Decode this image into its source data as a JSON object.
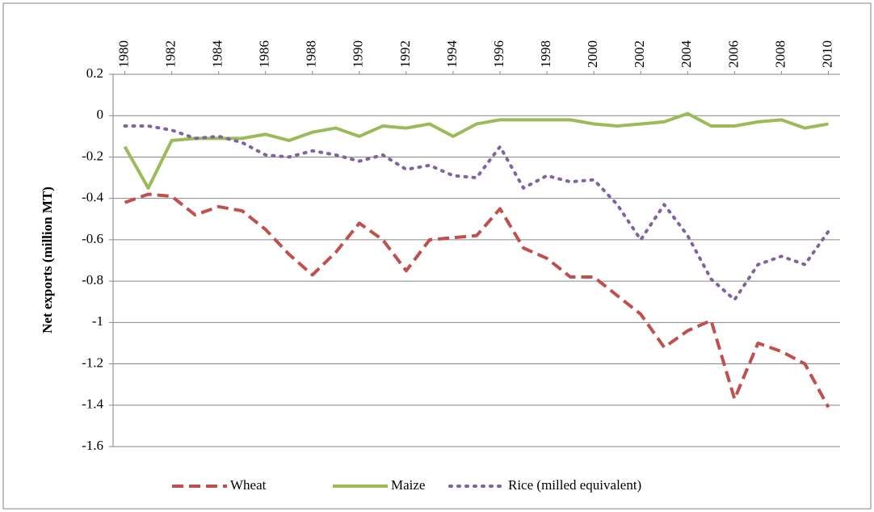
{
  "chart_data": {
    "type": "line",
    "y_label": "Net exports (million MT)",
    "x": [
      1980,
      1981,
      1982,
      1983,
      1984,
      1985,
      1986,
      1987,
      1988,
      1989,
      1990,
      1991,
      1992,
      1993,
      1994,
      1995,
      1996,
      1997,
      1998,
      1999,
      2000,
      2001,
      2002,
      2003,
      2004,
      2005,
      2006,
      2007,
      2008,
      2009,
      2010
    ],
    "xlim": [
      1979.5,
      2010.5
    ],
    "xticks": [
      1980,
      1982,
      1984,
      1986,
      1988,
      1990,
      1992,
      1994,
      1996,
      1998,
      2000,
      2002,
      2004,
      2006,
      2008,
      2010
    ],
    "ylim": [
      -1.6,
      0.2
    ],
    "yticks": [
      0.2,
      0,
      -0.2,
      -0.4,
      -0.6,
      -0.8,
      -1,
      -1.2,
      -1.4,
      -1.6
    ],
    "grid": true,
    "legend": "bottom",
    "series": [
      {
        "name": "Wheat",
        "color": "#c0504d",
        "dash": "dashed",
        "values": [
          -0.42,
          -0.38,
          -0.39,
          -0.48,
          -0.44,
          -0.46,
          -0.55,
          -0.67,
          -0.77,
          -0.66,
          -0.52,
          -0.6,
          -0.75,
          -0.6,
          -0.59,
          -0.58,
          -0.45,
          -0.64,
          -0.69,
          -0.78,
          -0.78,
          -0.87,
          -0.96,
          -1.12,
          -1.04,
          -0.99,
          -1.37,
          -1.1,
          -1.14,
          -1.2,
          -1.41
        ]
      },
      {
        "name": "Maize",
        "color": "#9bbb59",
        "dash": "solid",
        "values": [
          -0.15,
          -0.35,
          -0.12,
          -0.11,
          -0.11,
          -0.11,
          -0.09,
          -0.12,
          -0.08,
          -0.06,
          -0.1,
          -0.05,
          -0.06,
          -0.04,
          -0.1,
          -0.04,
          -0.02,
          -0.02,
          -0.02,
          -0.02,
          -0.04,
          -0.05,
          -0.04,
          -0.03,
          0.01,
          -0.05,
          -0.05,
          -0.03,
          -0.02,
          -0.06,
          -0.04
        ]
      },
      {
        "name": "Rice (milled equivalent)",
        "color": "#8064a2",
        "dash": "dotted",
        "values": [
          -0.05,
          -0.05,
          -0.07,
          -0.11,
          -0.1,
          -0.13,
          -0.19,
          -0.2,
          -0.17,
          -0.19,
          -0.22,
          -0.19,
          -0.26,
          -0.24,
          -0.29,
          -0.3,
          -0.15,
          -0.35,
          -0.29,
          -0.32,
          -0.31,
          -0.43,
          -0.6,
          -0.43,
          -0.58,
          -0.79,
          -0.89,
          -0.72,
          -0.68,
          -0.72,
          -0.56
        ]
      }
    ]
  }
}
